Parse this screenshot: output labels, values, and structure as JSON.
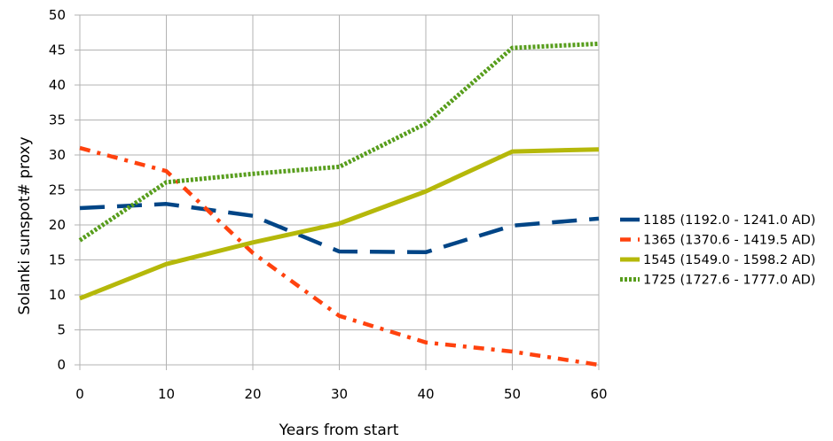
{
  "chart_data": {
    "type": "line",
    "title": "",
    "xlabel": "Years from start",
    "ylabel": "Solanki sunspot# proxy",
    "x": [
      0,
      10,
      20,
      30,
      40,
      50,
      60
    ],
    "xlim": [
      0,
      60
    ],
    "ylim": [
      0,
      50
    ],
    "x_ticks": [
      "0",
      "10",
      "20",
      "30",
      "40",
      "50",
      "60"
    ],
    "y_ticks": [
      "0",
      "5",
      "10",
      "15",
      "20",
      "25",
      "30",
      "35",
      "40",
      "45",
      "50"
    ],
    "grid": true,
    "legend_position": "right",
    "series": [
      {
        "name": "1185 (1192.0 - 1241.0 AD)",
        "color": "#004586",
        "style": "dashed",
        "values": [
          22.4,
          23.0,
          21.3,
          16.2,
          16.1,
          19.9,
          20.9
        ]
      },
      {
        "name": "1365 (1370.6 - 1419.5 AD)",
        "color": "#ff420e",
        "style": "dash-dot",
        "values": [
          31.0,
          27.7,
          16.0,
          7.0,
          3.2,
          1.9,
          0.0
        ]
      },
      {
        "name": "1545 (1549.0 - 1598.2 AD)",
        "color": "#b5b80a",
        "style": "solid",
        "values": [
          9.5,
          14.4,
          17.5,
          20.2,
          24.8,
          30.5,
          30.8
        ]
      },
      {
        "name": "1725 (1727.6 - 1777.0 AD)",
        "color": "#579d1c",
        "style": "dotted",
        "values": [
          17.8,
          26.1,
          27.3,
          28.3,
          34.5,
          45.3,
          45.9
        ]
      }
    ]
  }
}
